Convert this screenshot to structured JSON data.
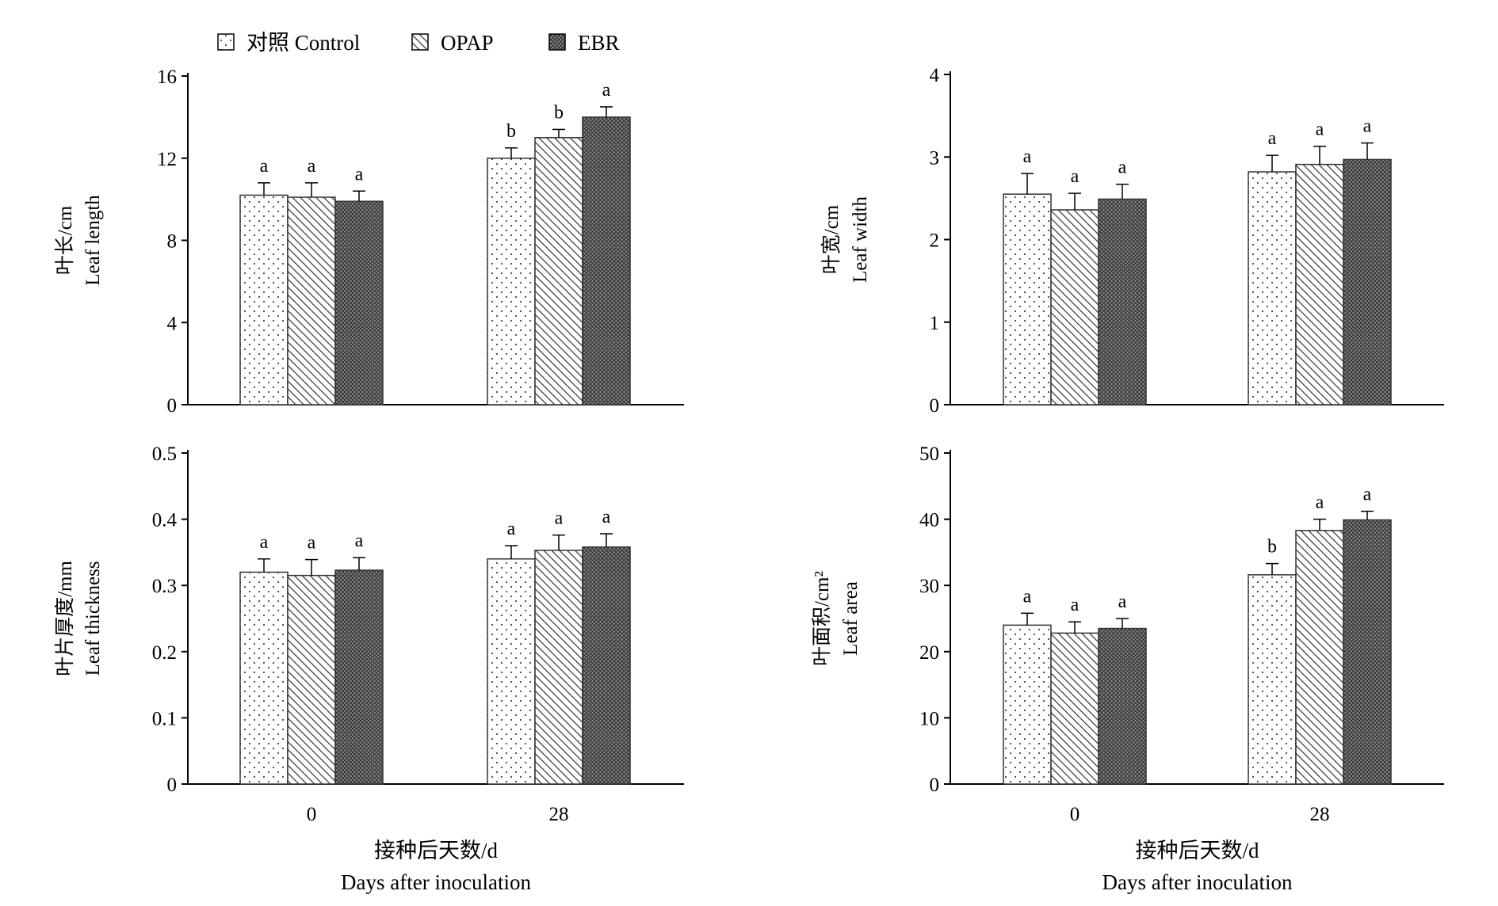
{
  "legend": {
    "items": [
      {
        "label": "对照 Control",
        "pattern": "dots"
      },
      {
        "label": "OPAP",
        "pattern": "diag"
      },
      {
        "label": "EBR",
        "pattern": "cross"
      }
    ]
  },
  "colors": {
    "axis": "#000000",
    "bar_stroke": "#333333",
    "background": "#ffffff"
  },
  "chart_data": [
    {
      "type": "bar",
      "ylabel_cn": "叶长/cm",
      "ylabel_en": "Leaf length",
      "xlabel_cn": "",
      "xlabel_en": "",
      "categories": [
        "0",
        "28"
      ],
      "show_x_ticks": false,
      "ylim": [
        0,
        16
      ],
      "yticks": [
        "0",
        "4",
        "8",
        "12",
        "16"
      ],
      "series": [
        {
          "name": "对照 Control",
          "values": [
            10.2,
            12.0
          ],
          "errors": [
            0.6,
            0.5
          ],
          "letters": [
            "a",
            "b"
          ]
        },
        {
          "name": "OPAP",
          "values": [
            10.1,
            13.0
          ],
          "errors": [
            0.7,
            0.4
          ],
          "letters": [
            "a",
            "b"
          ]
        },
        {
          "name": "EBR",
          "values": [
            9.9,
            14.0
          ],
          "errors": [
            0.5,
            0.5
          ],
          "letters": [
            "a",
            "a"
          ]
        }
      ]
    },
    {
      "type": "bar",
      "ylabel_cn": "叶宽/cm",
      "ylabel_en": "Leaf width",
      "xlabel_cn": "",
      "xlabel_en": "",
      "categories": [
        "0",
        "28"
      ],
      "show_x_ticks": false,
      "ylim": [
        0,
        4
      ],
      "yticks": [
        "0",
        "1",
        "2",
        "3",
        "4"
      ],
      "series": [
        {
          "name": "对照 Control",
          "values": [
            2.55,
            2.82
          ],
          "errors": [
            0.25,
            0.2
          ],
          "letters": [
            "a",
            "a"
          ]
        },
        {
          "name": "OPAP",
          "values": [
            2.36,
            2.91
          ],
          "errors": [
            0.2,
            0.22
          ],
          "letters": [
            "a",
            "a"
          ]
        },
        {
          "name": "EBR",
          "values": [
            2.49,
            2.97
          ],
          "errors": [
            0.18,
            0.2
          ],
          "letters": [
            "a",
            "a"
          ]
        }
      ]
    },
    {
      "type": "bar",
      "ylabel_cn": "叶片厚度/mm",
      "ylabel_en": "Leaf thickness",
      "xlabel_cn": "接种后天数/d",
      "xlabel_en": "Days after inoculation",
      "categories": [
        "0",
        "28"
      ],
      "show_x_ticks": true,
      "ylim": [
        0,
        0.5
      ],
      "yticks": [
        "0",
        "0.1",
        "0.2",
        "0.3",
        "0.4",
        "0.5"
      ],
      "series": [
        {
          "name": "对照 Control",
          "values": [
            0.32,
            0.34
          ],
          "errors": [
            0.02,
            0.02
          ],
          "letters": [
            "a",
            "a"
          ]
        },
        {
          "name": "OPAP",
          "values": [
            0.315,
            0.353
          ],
          "errors": [
            0.024,
            0.023
          ],
          "letters": [
            "a",
            "a"
          ]
        },
        {
          "name": "EBR",
          "values": [
            0.323,
            0.358
          ],
          "errors": [
            0.019,
            0.02
          ],
          "letters": [
            "a",
            "a"
          ]
        }
      ]
    },
    {
      "type": "bar",
      "ylabel_cn": "叶面积/cm²",
      "ylabel_en": "Leaf area",
      "xlabel_cn": "接种后天数/d",
      "xlabel_en": "Days after inoculation",
      "categories": [
        "0",
        "28"
      ],
      "show_x_ticks": true,
      "ylim": [
        0,
        50
      ],
      "yticks": [
        "0",
        "10",
        "20",
        "30",
        "40",
        "50"
      ],
      "series": [
        {
          "name": "对照 Control",
          "values": [
            24.0,
            31.6
          ],
          "errors": [
            1.8,
            1.7
          ],
          "letters": [
            "a",
            "b"
          ]
        },
        {
          "name": "OPAP",
          "values": [
            22.8,
            38.3
          ],
          "errors": [
            1.7,
            1.7
          ],
          "letters": [
            "a",
            "a"
          ]
        },
        {
          "name": "EBR",
          "values": [
            23.5,
            39.9
          ],
          "errors": [
            1.5,
            1.3
          ],
          "letters": [
            "a",
            "a"
          ]
        }
      ]
    }
  ]
}
